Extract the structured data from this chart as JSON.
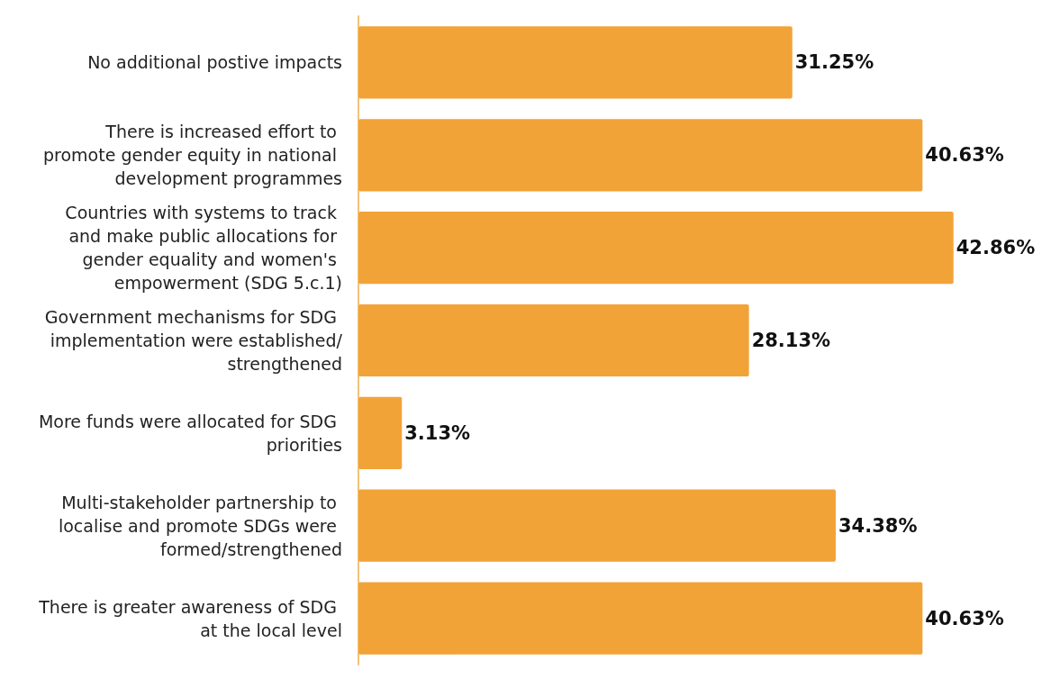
{
  "chart_data": {
    "type": "bar",
    "orientation": "horizontal",
    "categories": [
      "No additional postive impacts",
      "There is increased effort to promote gender equity in national development programmes",
      "Countries with systems to track and make public allocations for gender equality and women's empowerment (SDG 5.c.1)",
      "Government mechanisms for SDG implementation were established/strengthened",
      "More funds were allocated for SDG priorities",
      "Multi-stakeholder partnership to localise and promote SDGs were formed/strengthened",
      "There is greater awareness of SDG at the local level"
    ],
    "values": [
      31.25,
      40.63,
      42.86,
      28.13,
      3.13,
      34.38,
      40.63
    ],
    "value_labels": [
      "31.25%",
      "40.63%",
      "42.86%",
      "28.13%",
      "3.13%",
      "34.38%",
      "40.63%"
    ],
    "color": "#f2a338",
    "tick_labels": "y"
  }
}
